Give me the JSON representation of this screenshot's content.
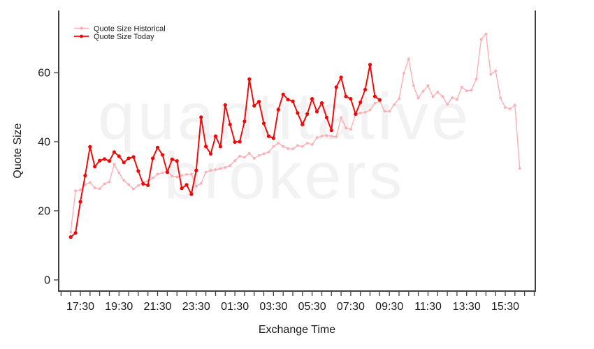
{
  "watermark": {
    "line1": "quantitative",
    "line2": "brokers"
  },
  "colors": {
    "historical": "#FFAEB4",
    "today": "#F40404",
    "axis": "#404040",
    "text": "#1a1a1a",
    "watermark": "#f2f2f2",
    "background": "#ffffff"
  },
  "chart_data": {
    "type": "line",
    "title": "",
    "xlabel": "Exchange Time",
    "ylabel": "Quote Size",
    "legend_position": "top-left",
    "grid": "off",
    "ylim": [
      -3.3,
      78.2
    ],
    "y_axis": {
      "ticks": [
        0,
        20,
        40,
        60
      ]
    },
    "x_axis": {
      "tick_labels": [
        "17:30",
        "19:30",
        "21:30",
        "23:30",
        "01:30",
        "03:30",
        "05:30",
        "07:30",
        "09:30",
        "11:30",
        "13:30",
        "15:30"
      ],
      "minor_tick_interval_minutes": 30,
      "label_interval_minutes": 120,
      "first_tick": "16:30",
      "last_tick": "17:00"
    },
    "series": [
      {
        "name": "Quote Size Historical",
        "color": "#FFAEB4",
        "times": [
          "17:00",
          "17:15",
          "17:30",
          "17:45",
          "18:00",
          "18:15",
          "18:30",
          "18:45",
          "19:00",
          "19:15",
          "19:30",
          "19:45",
          "20:00",
          "20:15",
          "20:30",
          "20:45",
          "21:00",
          "21:15",
          "21:30",
          "21:45",
          "22:00",
          "22:15",
          "22:30",
          "22:45",
          "23:00",
          "23:15",
          "23:30",
          "23:45",
          "00:00",
          "00:15",
          "00:30",
          "00:45",
          "01:00",
          "01:15",
          "01:30",
          "01:45",
          "02:00",
          "02:15",
          "02:30",
          "02:45",
          "03:00",
          "03:15",
          "03:30",
          "03:45",
          "04:00",
          "04:15",
          "04:30",
          "04:45",
          "05:00",
          "05:15",
          "05:30",
          "05:45",
          "06:00",
          "06:15",
          "06:30",
          "06:45",
          "07:00",
          "07:15",
          "07:30",
          "07:45",
          "08:00",
          "08:15",
          "08:30",
          "08:45",
          "09:00",
          "09:15",
          "09:30",
          "09:45",
          "10:00",
          "10:15",
          "10:30",
          "10:45",
          "11:00",
          "11:15",
          "11:30",
          "11:45",
          "12:00",
          "12:15",
          "12:30",
          "12:45",
          "13:00",
          "13:15",
          "13:30",
          "13:45",
          "14:00",
          "14:15",
          "14:30",
          "14:45",
          "15:00",
          "15:15",
          "15:30",
          "15:45",
          "16:00",
          "16:15"
        ],
        "values": [
          13.8,
          25.8,
          26.0,
          27.5,
          28.2,
          26.6,
          26.4,
          27.8,
          28.4,
          33.5,
          31.0,
          28.8,
          27.6,
          26.3,
          27.3,
          28.3,
          28.6,
          29.5,
          30.6,
          31.0,
          31.5,
          30.0,
          29.8,
          30.2,
          30.5,
          30.6,
          27.1,
          27.9,
          31.2,
          31.7,
          31.9,
          32.2,
          32.5,
          33.1,
          34.5,
          35.8,
          35.5,
          36.6,
          35.2,
          36.0,
          36.5,
          37.0,
          38.6,
          39.6,
          38.6,
          38.0,
          37.9,
          38.9,
          38.6,
          39.6,
          39.2,
          41.2,
          41.6,
          41.8,
          41.6,
          41.4,
          47.0,
          44.0,
          43.6,
          47.9,
          48.3,
          48.5,
          49.2,
          51.2,
          51.7,
          48.8,
          48.8,
          50.7,
          52.4,
          59.8,
          64.0,
          56.2,
          52.6,
          54.6,
          56.2,
          53.0,
          54.4,
          53.1,
          50.8,
          52.7,
          52.2,
          55.8,
          54.7,
          54.9,
          58.1,
          69.6,
          71.2,
          59.5,
          60.5,
          52.7,
          49.9,
          49.5,
          50.6,
          32.3
        ]
      },
      {
        "name": "Quote Size Today",
        "color": "#F40404",
        "times": [
          "17:00",
          "17:15",
          "17:30",
          "17:45",
          "18:00",
          "18:15",
          "18:30",
          "18:45",
          "19:00",
          "19:15",
          "19:30",
          "19:45",
          "20:00",
          "20:15",
          "20:30",
          "20:45",
          "21:00",
          "21:15",
          "21:30",
          "21:45",
          "22:00",
          "22:15",
          "22:30",
          "22:45",
          "23:00",
          "23:15",
          "23:30",
          "23:45",
          "00:00",
          "00:15",
          "00:30",
          "00:45",
          "01:00",
          "01:15",
          "01:30",
          "01:45",
          "02:00",
          "02:15",
          "02:30",
          "02:45",
          "03:00",
          "03:15",
          "03:30",
          "03:45",
          "04:00",
          "04:15",
          "04:30",
          "04:45",
          "05:00",
          "05:15",
          "05:30",
          "05:45",
          "06:00",
          "06:15",
          "06:30",
          "06:45",
          "07:00",
          "07:15",
          "07:30",
          "07:45",
          "08:00",
          "08:15",
          "08:30",
          "08:45",
          "09:00"
        ],
        "values": [
          12.4,
          13.6,
          22.6,
          30.2,
          38.5,
          32.8,
          34.5,
          35.0,
          34.4,
          37.0,
          35.8,
          34.0,
          35.2,
          35.6,
          31.5,
          27.8,
          27.4,
          35.2,
          38.3,
          36.2,
          31.2,
          34.9,
          34.4,
          26.5,
          27.5,
          24.8,
          31.7,
          47.1,
          38.6,
          36.5,
          41.6,
          38.6,
          50.6,
          45.0,
          39.9,
          40.0,
          45.9,
          58.1,
          50.4,
          51.6,
          45.3,
          41.6,
          41.0,
          49.3,
          53.7,
          52.2,
          51.7,
          48.3,
          45.0,
          48.0,
          52.4,
          48.7,
          51.2,
          47.0,
          43.3,
          55.8,
          58.6,
          53.1,
          52.4,
          48.0,
          51.4,
          55.1,
          62.3,
          53.1,
          52.1
        ]
      }
    ]
  }
}
